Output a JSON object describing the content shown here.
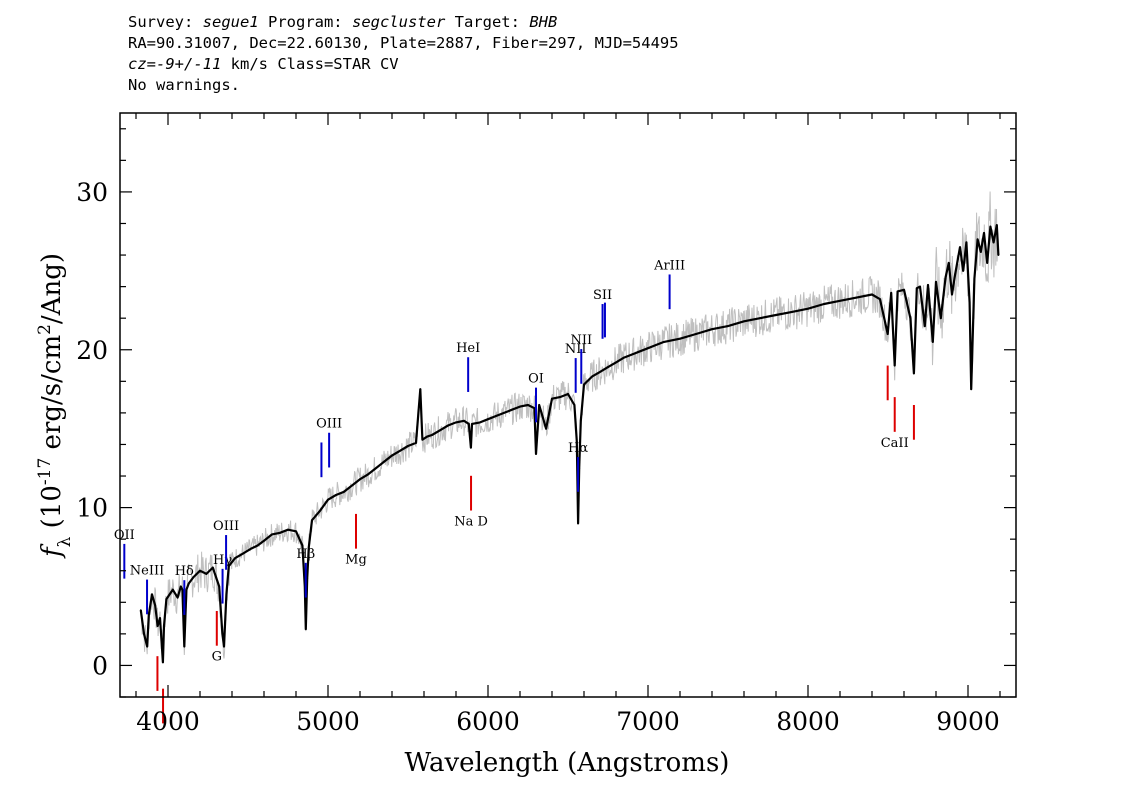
{
  "header": {
    "survey_label": "Survey: ",
    "survey": "segue1",
    "program_label": " Program: ",
    "program": "segcluster",
    "target_label": " Target: ",
    "target": "BHB",
    "line2": "RA=90.31007, Dec=22.60130, Plate=2887, Fiber=297, MJD=54495",
    "cz_label": "cz",
    "cz_value": "=-9+/-11",
    "cz_rest": " km/s Class=STAR CV",
    "line4": "No warnings."
  },
  "chart_data": {
    "type": "line",
    "xlabel": "Wavelength (Angstroms)",
    "ylabel": "f_λ (10^-17 erg/s/cm^2/Ang)",
    "xlim": [
      3700,
      9300
    ],
    "ylim": [
      -2,
      35
    ],
    "xticks": [
      4000,
      5000,
      6000,
      7000,
      8000,
      9000
    ],
    "yticks": [
      0,
      10,
      20,
      30
    ],
    "colors": {
      "spectrum": "#000000",
      "error": "#bfbfbf",
      "emission": "#0000cc",
      "absorption": "#dd0000"
    },
    "series": [
      {
        "x": [
          3830,
          3850,
          3870,
          3880,
          3900,
          3920,
          3935,
          3950,
          3960,
          3968,
          3975,
          3990,
          4010,
          4030,
          4060,
          4080,
          4090,
          4102,
          4115,
          4130,
          4160,
          4200,
          4240,
          4280,
          4320,
          4340,
          4350,
          4365,
          4380,
          4420,
          4470,
          4520,
          4560,
          4600,
          4650,
          4700,
          4750,
          4800,
          4840,
          4855,
          4861,
          4870,
          4880,
          4900,
          4950,
          5000,
          5050,
          5100,
          5150,
          5200,
          5250,
          5300,
          5350,
          5400,
          5450,
          5500,
          5550,
          5577,
          5590,
          5620,
          5650,
          5700,
          5750,
          5800,
          5850,
          5880,
          5893,
          5900,
          5950,
          6000,
          6050,
          6100,
          6150,
          6200,
          6250,
          6290,
          6300,
          6320,
          6363,
          6400,
          6450,
          6500,
          6540,
          6555,
          6563,
          6570,
          6580,
          6600,
          6650,
          6700,
          6750,
          6800,
          6850,
          6900,
          6950,
          7000,
          7050,
          7100,
          7150,
          7200,
          7300,
          7400,
          7500,
          7600,
          7700,
          7800,
          7900,
          8000,
          8100,
          8200,
          8300,
          8400,
          8450,
          8498,
          8520,
          8542,
          8560,
          8600,
          8640,
          8662,
          8680,
          8700,
          8730,
          8750,
          8780,
          8800,
          8830,
          8860,
          8880,
          8900,
          8920,
          8950,
          8970,
          8990,
          9010,
          9020,
          9040,
          9060,
          9080,
          9100,
          9120,
          9140,
          9160,
          9180,
          9190
        ],
        "y": [
          3.5,
          2.0,
          1.2,
          3.2,
          4.5,
          3.8,
          2.5,
          3.0,
          1.5,
          0.2,
          2.5,
          4.2,
          4.5,
          4.8,
          4.3,
          5.0,
          4.8,
          1.2,
          4.8,
          5.2,
          5.6,
          6.0,
          5.8,
          6.2,
          5.0,
          2.0,
          1.2,
          4.5,
          6.3,
          6.8,
          7.1,
          7.4,
          7.6,
          7.9,
          8.3,
          8.4,
          8.6,
          8.5,
          7.6,
          5.0,
          2.3,
          5.5,
          7.5,
          9.2,
          9.8,
          10.5,
          10.8,
          11.0,
          11.4,
          11.8,
          12.1,
          12.5,
          12.9,
          13.3,
          13.6,
          13.9,
          14.1,
          17.5,
          14.3,
          14.5,
          14.6,
          14.9,
          15.2,
          15.4,
          15.5,
          15.3,
          13.8,
          15.3,
          15.4,
          15.6,
          15.8,
          16.0,
          16.2,
          16.4,
          16.5,
          16.3,
          13.4,
          16.5,
          15.0,
          16.9,
          17.0,
          17.2,
          16.5,
          14.2,
          9.0,
          12.5,
          15.5,
          17.8,
          18.3,
          18.6,
          18.9,
          19.2,
          19.5,
          19.7,
          19.9,
          20.1,
          20.3,
          20.5,
          20.6,
          20.7,
          21.0,
          21.3,
          21.5,
          21.8,
          22.0,
          22.2,
          22.4,
          22.6,
          22.9,
          23.1,
          23.3,
          23.5,
          23.2,
          21.0,
          23.6,
          19.0,
          23.7,
          23.8,
          22.0,
          18.5,
          23.9,
          24.0,
          21.5,
          24.1,
          20.5,
          24.3,
          22.0,
          24.6,
          25.5,
          23.5,
          24.8,
          26.5,
          25.0,
          26.8,
          23.0,
          17.5,
          24.5,
          27.0,
          26.2,
          27.4,
          25.5,
          27.8,
          26.8,
          27.9,
          26.0
        ]
      }
    ],
    "emission_lines": [
      {
        "label": "OII",
        "wl": 3727
      },
      {
        "label": "NeIII",
        "wl": 3869
      },
      {
        "label": "Hδ",
        "wl": 4102
      },
      {
        "label": "Hγ",
        "wl": 4341
      },
      {
        "label": "OIII",
        "wl": 4363
      },
      {
        "label": "Hβ",
        "wl": 4861
      },
      {
        "label": "",
        "wl": 4959
      },
      {
        "label": "OIII",
        "wl": 5007
      },
      {
        "label": "HeI",
        "wl": 5876
      },
      {
        "label": "OI",
        "wl": 6300
      },
      {
        "label": "NII",
        "wl": 6548
      },
      {
        "label": "Hα",
        "wl": 6563
      },
      {
        "label": "NII",
        "wl": 6583
      },
      {
        "label": "SII",
        "wl": 6716
      },
      {
        "label": "",
        "wl": 6731
      },
      {
        "label": "ArIII",
        "wl": 7135
      }
    ],
    "absorption_lines": [
      {
        "label": "",
        "wl": 3934
      },
      {
        "label": "",
        "wl": 3969
      },
      {
        "label": "G",
        "wl": 4305
      },
      {
        "label": "Mg",
        "wl": 5175
      },
      {
        "label": "Na D",
        "wl": 5894
      },
      {
        "label": "",
        "wl": 8498
      },
      {
        "label": "CaII",
        "wl": 8542
      },
      {
        "label": "",
        "wl": 8662
      }
    ]
  }
}
